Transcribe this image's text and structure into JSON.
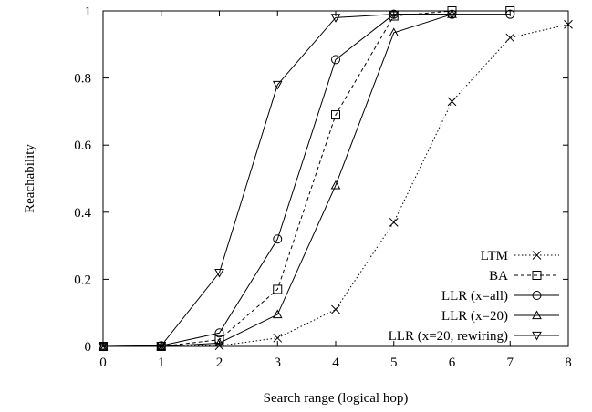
{
  "chart_data": {
    "type": "line",
    "title": "",
    "xlabel": "Search range (logical hop)",
    "ylabel": "Reachability",
    "xlim": [
      0,
      8
    ],
    "ylim": [
      0,
      1
    ],
    "x_ticks": [
      0,
      1,
      2,
      3,
      4,
      5,
      6,
      7,
      8
    ],
    "y_ticks": [
      0,
      0.2,
      0.4,
      0.6,
      0.8,
      1
    ],
    "y_tick_labels": [
      "0",
      "0.2",
      "0.4",
      "0.6",
      "0.8",
      "1"
    ],
    "grid": false,
    "legend": "bottom-right",
    "series": [
      {
        "name": "LTM",
        "marker": "x",
        "dash": "dotted",
        "points": [
          [
            0,
            0
          ],
          [
            1,
            0
          ],
          [
            2,
            0.002
          ],
          [
            3,
            0.025
          ],
          [
            4,
            0.11
          ],
          [
            5,
            0.37
          ],
          [
            6,
            0.73
          ],
          [
            7,
            0.92
          ],
          [
            8,
            0.96
          ]
        ]
      },
      {
        "name": "BA",
        "marker": "square",
        "dash": "dashed",
        "points": [
          [
            0,
            0
          ],
          [
            1,
            0
          ],
          [
            2,
            0.02
          ],
          [
            3,
            0.17
          ],
          [
            4,
            0.69
          ],
          [
            5,
            0.985
          ],
          [
            6,
            1.0
          ],
          [
            7,
            1.0
          ]
        ]
      },
      {
        "name": "LLR (x=all)",
        "marker": "circle",
        "dash": "solid",
        "points": [
          [
            0,
            0
          ],
          [
            1,
            0.002
          ],
          [
            2,
            0.04
          ],
          [
            3,
            0.32
          ],
          [
            4,
            0.855
          ],
          [
            5,
            0.99
          ],
          [
            6,
            0.99
          ],
          [
            7,
            0.99
          ]
        ]
      },
      {
        "name": "LLR (x=20)",
        "marker": "triangle-up",
        "dash": "solid",
        "points": [
          [
            0,
            0
          ],
          [
            1,
            0
          ],
          [
            2,
            0.01
          ],
          [
            3,
            0.095
          ],
          [
            4,
            0.48
          ],
          [
            5,
            0.935
          ],
          [
            6,
            0.99
          ]
        ]
      },
      {
        "name": "LLR (x=20, rewiring)",
        "marker": "triangle-down",
        "dash": "solid",
        "points": [
          [
            0,
            0
          ],
          [
            1,
            0.002
          ],
          [
            2,
            0.22
          ],
          [
            3,
            0.78
          ],
          [
            4,
            0.98
          ],
          [
            5,
            0.99
          ],
          [
            6,
            0.99
          ]
        ]
      }
    ]
  }
}
